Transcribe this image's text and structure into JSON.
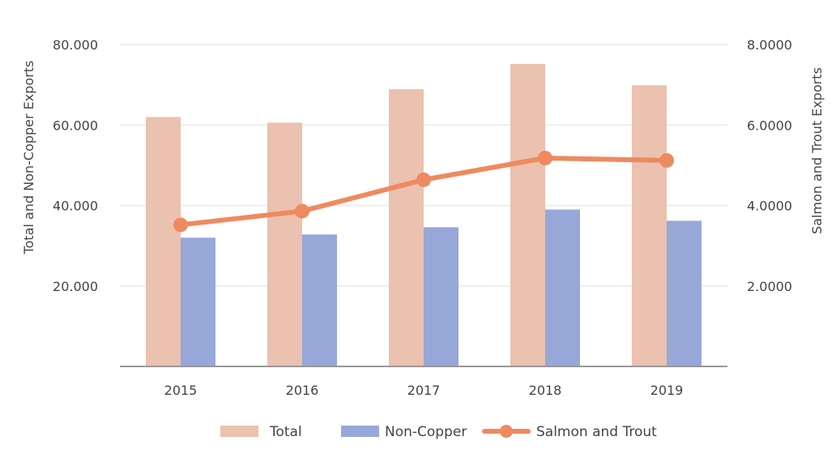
{
  "chart_data": {
    "type": "bar",
    "categories": [
      "2015",
      "2016",
      "2017",
      "2018",
      "2019"
    ],
    "series": [
      {
        "name": "Total",
        "type": "bar",
        "axis": "left",
        "color": "#ebc1b0",
        "values": [
          62.0,
          60.6,
          68.9,
          75.2,
          69.9
        ]
      },
      {
        "name": "Non-Copper",
        "type": "bar",
        "axis": "left",
        "color": "#97a8d8",
        "values": [
          32.0,
          32.8,
          34.6,
          39.0,
          36.2
        ]
      },
      {
        "name": "Salmon and Trout",
        "type": "line",
        "axis": "right",
        "color": "#ee8a5f",
        "values": [
          3.52,
          3.86,
          4.64,
          5.18,
          5.12
        ]
      }
    ],
    "ylabel": "Total and Non-Copper Exports",
    "ylabel_right": "Salmon and Trout Exports",
    "ylim": [
      0,
      80
    ],
    "ylim_right": [
      0,
      8
    ],
    "yticks": [
      "20.000",
      "40.000",
      "60.000",
      "80.000"
    ],
    "yticks_right": [
      "2.0000",
      "4.0000",
      "6.0000",
      "8.0000"
    ],
    "legend_position": "bottom",
    "grid": true
  }
}
